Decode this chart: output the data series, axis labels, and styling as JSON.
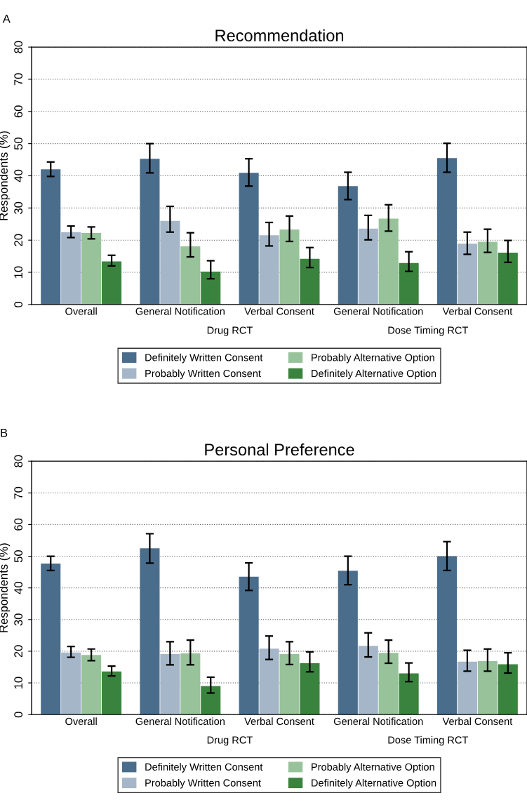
{
  "chart_data": [
    {
      "type": "bar",
      "title": "Recommendation",
      "ylabel": "Respondents (%)",
      "categories": [
        "Overall",
        "General Notification",
        "Verbal Consent",
        "General Notification",
        "Verbal Consent"
      ],
      "annotations": [
        "A",
        "Drug RCT",
        "Dose Timing RCT"
      ],
      "series": [
        {
          "name": "Definitely Written Consent",
          "color": "#4a6d8c",
          "values": [
            42.0,
            45.3,
            40.9,
            36.8,
            45.5
          ],
          "errors": [
            [
              39.8,
              44.3
            ],
            [
              40.9,
              50.0
            ],
            [
              36.8,
              45.3
            ],
            [
              32.6,
              41.1
            ],
            [
              41.1,
              50.1
            ]
          ]
        },
        {
          "name": "Probably Written Consent",
          "color": "#a5b6c9",
          "values": [
            22.5,
            26.0,
            21.5,
            23.6,
            18.9
          ],
          "errors": [
            [
              20.8,
              24.4
            ],
            [
              22.5,
              30.5
            ],
            [
              18.2,
              25.5
            ],
            [
              20.1,
              27.7
            ],
            [
              15.6,
              22.5
            ]
          ]
        },
        {
          "name": "Probably Alternative Option",
          "color": "#98c39a",
          "values": [
            22.2,
            18.1,
            23.3,
            26.7,
            19.5
          ],
          "errors": [
            [
              20.4,
              24.1
            ],
            [
              14.8,
              22.3
            ],
            [
              19.6,
              27.5
            ],
            [
              22.8,
              31.0
            ],
            [
              16.2,
              23.4
            ]
          ]
        },
        {
          "name": "Definitely Alternative Option",
          "color": "#3a833e",
          "values": [
            13.4,
            10.2,
            14.2,
            12.9,
            16.1
          ],
          "errors": [
            [
              12.0,
              15.3
            ],
            [
              8.0,
              13.6
            ],
            [
              11.5,
              17.7
            ],
            [
              10.3,
              16.4
            ],
            [
              13.1,
              19.9
            ]
          ]
        }
      ],
      "ylim": [
        0,
        80
      ],
      "yticks": [
        0,
        10,
        20,
        30,
        40,
        50,
        60,
        70,
        80
      ],
      "grid": "y",
      "legend": "bottom"
    },
    {
      "type": "bar",
      "title": "Personal Preference",
      "ylabel": "Respondents (%)",
      "categories": [
        "Overall",
        "General Notification",
        "Verbal Consent",
        "General Notification",
        "Verbal Consent"
      ],
      "annotations": [
        "B",
        "Drug RCT",
        "Dose Timing RCT"
      ],
      "series": [
        {
          "name": "Definitely Written Consent",
          "color": "#4a6d8c",
          "values": [
            47.7,
            52.5,
            43.5,
            45.4,
            50.0
          ],
          "errors": [
            [
              45.5,
              50.0
            ],
            [
              47.8,
              57.1
            ],
            [
              39.2,
              47.9
            ],
            [
              41.0,
              50.0
            ],
            [
              45.5,
              54.6
            ]
          ]
        },
        {
          "name": "Probably Written Consent",
          "color": "#a5b6c9",
          "values": [
            19.6,
            19.1,
            20.8,
            21.7,
            16.7
          ],
          "errors": [
            [
              18.1,
              21.5
            ],
            [
              15.7,
              23.0
            ],
            [
              17.4,
              24.8
            ],
            [
              18.2,
              25.8
            ],
            [
              13.7,
              20.3
            ]
          ]
        },
        {
          "name": "Probably Alternative Option",
          "color": "#98c39a",
          "values": [
            18.8,
            19.3,
            19.1,
            19.5,
            16.9
          ],
          "errors": [
            [
              17.0,
              20.7
            ],
            [
              15.7,
              23.5
            ],
            [
              15.8,
              23.0
            ],
            [
              16.2,
              23.5
            ],
            [
              13.7,
              20.7
            ]
          ]
        },
        {
          "name": "Definitely Alternative Option",
          "color": "#3a833e",
          "values": [
            13.6,
            9.0,
            16.2,
            13.0,
            15.9
          ],
          "errors": [
            [
              12.2,
              15.3
            ],
            [
              6.8,
              11.8
            ],
            [
              13.5,
              19.8
            ],
            [
              10.4,
              16.3
            ],
            [
              13.1,
              19.5
            ]
          ]
        }
      ],
      "ylim": [
        0,
        80
      ],
      "yticks": [
        0,
        10,
        20,
        30,
        40,
        50,
        60,
        70,
        80
      ],
      "grid": "y",
      "legend": "bottom"
    }
  ]
}
